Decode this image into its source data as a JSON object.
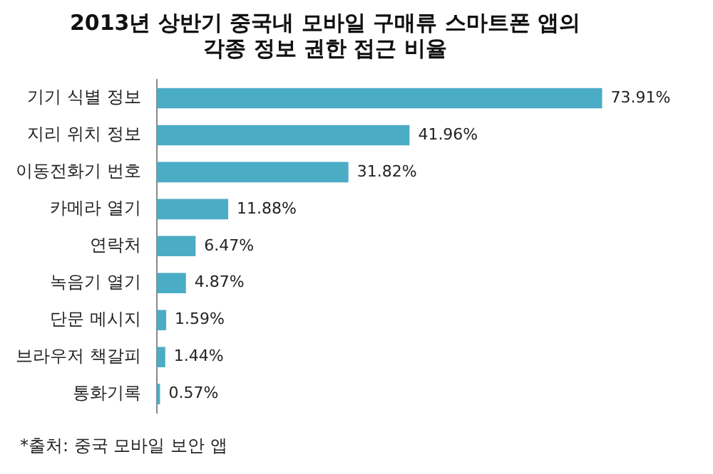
{
  "chart_data": {
    "type": "bar",
    "orientation": "horizontal",
    "tick_labels": "y",
    "title": "2013년 상반기 중국내 모바일 구매류 스마트폰 앱의\n각종 정보 권한 접근 비율",
    "categories": [
      "기기 식별 정보",
      "지리 위치 정보",
      "이동전화기 번호",
      "카메라 열기",
      "연락처",
      "녹음기 열기",
      "단문 메시지",
      "브라우저 책갈피",
      "통화기록"
    ],
    "values": [
      73.91,
      41.96,
      31.82,
      11.88,
      6.47,
      4.87,
      1.59,
      1.44,
      0.57
    ],
    "value_labels": [
      "73.91%",
      "41.96%",
      "31.82%",
      "11.88%",
      "6.47%",
      "4.87%",
      "1.59%",
      "1.44%",
      "0.57%"
    ],
    "color": "#4bacc6",
    "annotations": [
      "*출처: 중국 모바일 보안 앱"
    ],
    "legend": false
  }
}
